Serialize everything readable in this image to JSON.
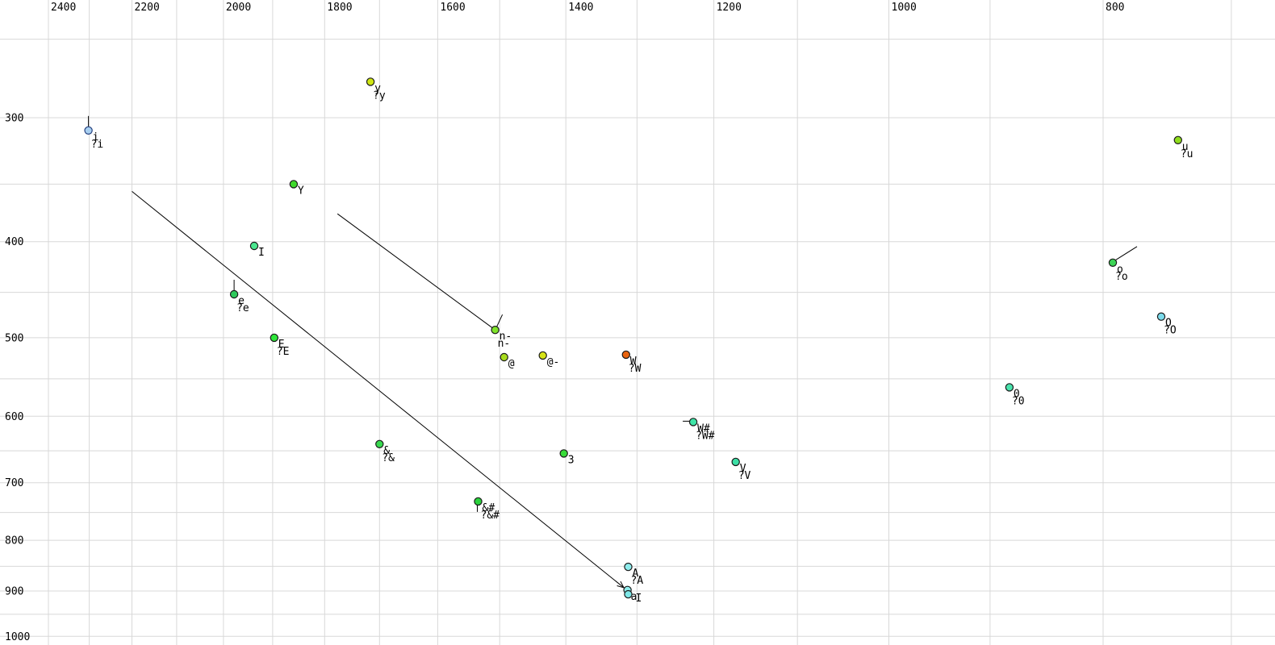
{
  "chart": {
    "background": "#ffffff",
    "grid_color": "#d8d8d8",
    "text_color": "#000000",
    "line_color": "#000000"
  },
  "chart_data": {
    "type": "scatter",
    "x_axis": {
      "unit": "Hz",
      "scale": "log",
      "reversed": true,
      "grid_min": 700,
      "grid_max": 2400,
      "grid_step": 100,
      "labels": [
        2400,
        2200,
        2000,
        1800,
        1600,
        1400,
        1200,
        1000,
        800
      ]
    },
    "y_axis": {
      "unit": "Hz",
      "scale": "log",
      "direction": "down",
      "grid_min": 250,
      "grid_max": 1000,
      "grid_step": 50,
      "labels": [
        300,
        400,
        500,
        600,
        700,
        800,
        900,
        1000
      ]
    },
    "points": [
      {
        "id": "y",
        "label": "y",
        "label2": "?y",
        "f2": 1716,
        "f1": 276,
        "color": "#cfe612"
      },
      {
        "id": "i",
        "label": "i",
        "label2": "?i",
        "f2": 2302,
        "f1": 309,
        "color": "#a8cff0",
        "stroke": "#24407e",
        "tick": [
          0,
          -18,
          0,
          -4
        ]
      },
      {
        "id": "Y",
        "label": "Y",
        "f2": 1859,
        "f1": 350,
        "color": "#3fd92b"
      },
      {
        "id": "I",
        "label": "I",
        "f2": 1937,
        "f1": 404,
        "color": "#4ae68e"
      },
      {
        "id": "e",
        "label": "e",
        "label2": "?e",
        "f2": 1978,
        "f1": 452,
        "color": "#2fc95c",
        "tick": [
          0,
          -18,
          0,
          -5
        ]
      },
      {
        "id": "E",
        "label": "E",
        "label2": "?E",
        "f2": 1897,
        "f1": 500,
        "color": "#2ee63a"
      },
      {
        "id": "n-",
        "label": "n-",
        "label2": "n-",
        "f2": 1507,
        "f1": 491,
        "color": "#7fe32a",
        "label_color": "#8a8aa2",
        "tick": [
          2,
          -4,
          9,
          -19
        ]
      },
      {
        "id": "@",
        "label": "@",
        "f2": 1493,
        "f1": 523,
        "color": "#a8dc1e"
      },
      {
        "id": "@-",
        "label": "@-",
        "f2": 1434,
        "f1": 521,
        "color": "#d6e316"
      },
      {
        "id": "W",
        "label": "W",
        "label2": "?W",
        "f2": 1315,
        "f1": 520,
        "color": "#e8630e"
      },
      {
        "id": "W#",
        "label": "W#",
        "label2": "?W#",
        "f2": 1226,
        "f1": 608,
        "color": "#3fe6a8",
        "tick": [
          -13,
          -1,
          -2,
          -1
        ]
      },
      {
        "id": "3",
        "label": "3",
        "f2": 1403,
        "f1": 654,
        "color": "#38dc38"
      },
      {
        "id": "V",
        "label": "V",
        "label2": "?V",
        "f2": 1173,
        "f1": 667,
        "color": "#3cdfa5"
      },
      {
        "id": "&",
        "label": "&",
        "label2": "?&",
        "f2": 1700,
        "f1": 640,
        "color": "#38d94f"
      },
      {
        "id": "&#",
        "label": "&#",
        "label2": "?&#",
        "f2": 1534,
        "f1": 731,
        "color": "#2bd23d",
        "tick": [
          -1,
          4,
          -1,
          13
        ]
      },
      {
        "id": "A",
        "label": "A",
        "label2": "?A",
        "f2": 1312,
        "f1": 851,
        "color": "#8feded"
      },
      {
        "id": "a",
        "label": "a",
        "f2": 1313,
        "f1": 898,
        "color": "#8feded",
        "label_offset": [
          4,
          12
        ]
      },
      {
        "id": "aI",
        "label": "I",
        "f2": 1312,
        "f1": 907,
        "color": "#7fe8e8",
        "label_offset": [
          9,
          9
        ]
      },
      {
        "id": "u",
        "label": "u",
        "label2": "?u",
        "f2": 740,
        "f1": 316,
        "color": "#8fdd1c"
      },
      {
        "id": "o",
        "label": "o",
        "label2": "?o",
        "f2": 792,
        "f1": 420,
        "color": "#3cd455",
        "tick": [
          3,
          -3,
          30,
          -20
        ]
      },
      {
        "id": "O",
        "label": "O",
        "label2": "?O",
        "f2": 753,
        "f1": 476,
        "color": "#7cdbeb"
      },
      {
        "id": "0",
        "label": "0",
        "label2": "?0",
        "f2": 882,
        "f1": 561,
        "color": "#4ae3ad"
      }
    ],
    "trajectories": [
      {
        "from": {
          "f2": 2200,
          "f1": 356
        },
        "to": {
          "f2": 1318,
          "f1": 893
        },
        "arrow": true
      },
      {
        "from": {
          "f2": 1776,
          "f1": 375
        },
        "to": {
          "f2": 1507,
          "f1": 491
        },
        "arrow": false
      }
    ]
  }
}
